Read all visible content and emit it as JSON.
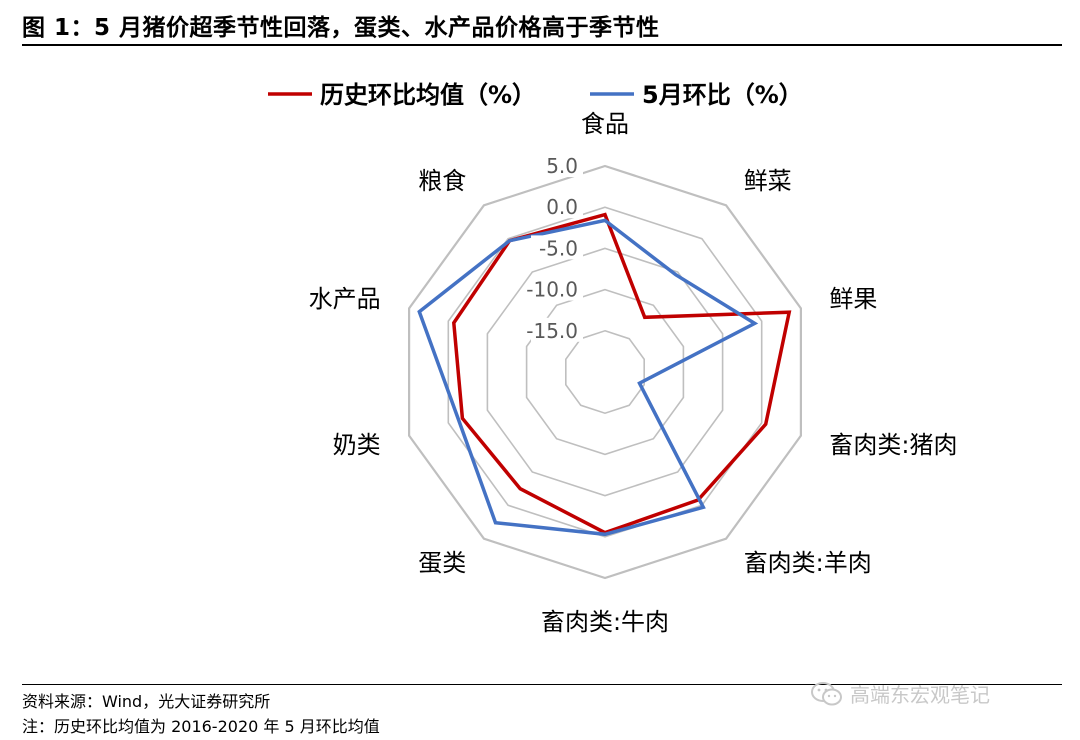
{
  "header": {
    "title": "图 1：5 月猪价超季节性回落，蛋类、水产品价格高于季节性"
  },
  "chart_data": {
    "type": "radar",
    "categories": [
      "食品",
      "鲜菜",
      "鲜果",
      "畜肉类:猪肉",
      "畜肉类:羊肉",
      "畜肉类:牛肉",
      "蛋类",
      "奶类",
      "水产品",
      "粮食"
    ],
    "series": [
      {
        "name": "历史环比均值（%）",
        "color": "#C00000",
        "values": [
          -0.9,
          -11.8,
          3.5,
          0.5,
          -0.8,
          -0.5,
          -2.5,
          -1.8,
          -0.7,
          -0.3
        ]
      },
      {
        "name": "5月环比（%）",
        "color": "#4472C4",
        "values": [
          -1.6,
          -5.4,
          -0.9,
          -15.6,
          0.3,
          -0.3,
          2.6,
          -1.3,
          3.7,
          -0.3
        ]
      }
    ],
    "rlim": [
      -20,
      5
    ],
    "rticks": [
      "5.0",
      "0.0",
      "-5.0",
      "-10.0",
      "-15.0"
    ],
    "grid": true,
    "legend": "top"
  },
  "footer": {
    "source": "资料来源：Wind，光大证券研究所",
    "note": "注：历史环比均值为 2016-2020 年 5 月环比均值"
  },
  "watermark": {
    "text": "高端东宏观笔记",
    "icon": "wechat-icon"
  }
}
